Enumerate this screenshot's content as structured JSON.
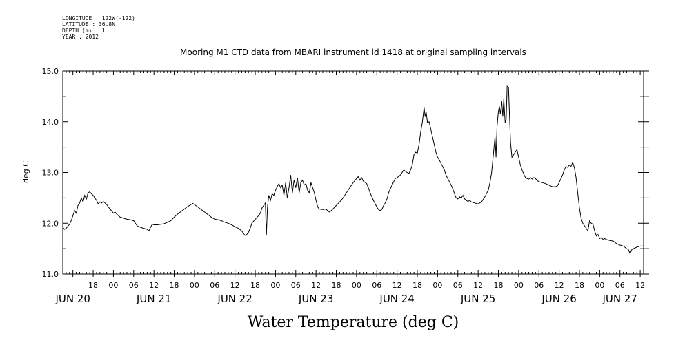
{
  "header": {
    "lines": [
      "LONGITUDE : 122W(-122)",
      "LATITUDE : 36.8N",
      "DEPTH (m) : 1",
      "YEAR : 2012"
    ]
  },
  "chart_data": {
    "type": "line",
    "title": "Mooring M1 CTD data from MBARI instrument id 1418 at original sampling intervals",
    "xlabel": "Water Temperature (deg C)",
    "ylabel": "deg C",
    "ylim": [
      11.0,
      15.0
    ],
    "yticks": [
      "11.0",
      "12.0",
      "13.0",
      "14.0",
      "15.0"
    ],
    "x_unit": "hours since 20-JUN-2012 00:00",
    "xlim": [
      9,
      181
    ],
    "hour_labels": [
      {
        "h": 18,
        "t": "18"
      },
      {
        "h": 24,
        "t": "00"
      },
      {
        "h": 30,
        "t": "06"
      },
      {
        "h": 36,
        "t": "12"
      },
      {
        "h": 42,
        "t": "18"
      },
      {
        "h": 48,
        "t": "00"
      },
      {
        "h": 54,
        "t": "06"
      },
      {
        "h": 60,
        "t": "12"
      },
      {
        "h": 66,
        "t": "18"
      },
      {
        "h": 72,
        "t": "00"
      },
      {
        "h": 78,
        "t": "06"
      },
      {
        "h": 84,
        "t": "12"
      },
      {
        "h": 90,
        "t": "18"
      },
      {
        "h": 96,
        "t": "00"
      },
      {
        "h": 102,
        "t": "06"
      },
      {
        "h": 108,
        "t": "12"
      },
      {
        "h": 114,
        "t": "18"
      },
      {
        "h": 120,
        "t": "00"
      },
      {
        "h": 126,
        "t": "06"
      },
      {
        "h": 132,
        "t": "12"
      },
      {
        "h": 138,
        "t": "18"
      },
      {
        "h": 144,
        "t": "00"
      },
      {
        "h": 150,
        "t": "06"
      },
      {
        "h": 156,
        "t": "12"
      },
      {
        "h": 162,
        "t": "18"
      },
      {
        "h": 168,
        "t": "00"
      },
      {
        "h": 174,
        "t": "06"
      },
      {
        "h": 180,
        "t": "12"
      }
    ],
    "date_labels": [
      {
        "h": 12,
        "t": "JUN 20"
      },
      {
        "h": 36,
        "t": "JUN 21"
      },
      {
        "h": 60,
        "t": "JUN 22"
      },
      {
        "h": 84,
        "t": "JUN 23"
      },
      {
        "h": 108,
        "t": "JUN 24"
      },
      {
        "h": 132,
        "t": "JUN 25"
      },
      {
        "h": 156,
        "t": "JUN 26"
      },
      {
        "h": 174,
        "t": "JUN 27"
      }
    ],
    "series": [
      {
        "points": [
          [
            9,
            11.92
          ],
          [
            9.5,
            11.88
          ],
          [
            10,
            11.9
          ],
          [
            11,
            11.98
          ],
          [
            11.5,
            12.05
          ],
          [
            12,
            12.15
          ],
          [
            12.5,
            12.25
          ],
          [
            13,
            12.2
          ],
          [
            13.5,
            12.35
          ],
          [
            14,
            12.4
          ],
          [
            14.5,
            12.5
          ],
          [
            15,
            12.42
          ],
          [
            15.5,
            12.55
          ],
          [
            16,
            12.48
          ],
          [
            16.5,
            12.6
          ],
          [
            17,
            12.62
          ],
          [
            17.5,
            12.58
          ],
          [
            18,
            12.55
          ],
          [
            18.5,
            12.5
          ],
          [
            19,
            12.45
          ],
          [
            19.5,
            12.38
          ],
          [
            20,
            12.42
          ],
          [
            20.5,
            12.4
          ],
          [
            21,
            12.43
          ],
          [
            21.5,
            12.4
          ],
          [
            22,
            12.37
          ],
          [
            22.5,
            12.32
          ],
          [
            23,
            12.28
          ],
          [
            23.5,
            12.24
          ],
          [
            24,
            12.2
          ],
          [
            24.5,
            12.22
          ],
          [
            25,
            12.18
          ],
          [
            26,
            12.12
          ],
          [
            27,
            12.1
          ],
          [
            28,
            12.08
          ],
          [
            29,
            12.07
          ],
          [
            30,
            12.05
          ],
          [
            30.5,
            12.0
          ],
          [
            31,
            11.95
          ],
          [
            32,
            11.92
          ],
          [
            33,
            11.9
          ],
          [
            34,
            11.88
          ],
          [
            34.5,
            11.85
          ],
          [
            35,
            11.92
          ],
          [
            35.5,
            11.98
          ],
          [
            36,
            11.97
          ],
          [
            37,
            11.97
          ],
          [
            38,
            11.98
          ],
          [
            39,
            11.99
          ],
          [
            40,
            12.02
          ],
          [
            41,
            12.05
          ],
          [
            42,
            12.12
          ],
          [
            43,
            12.18
          ],
          [
            44,
            12.23
          ],
          [
            45,
            12.28
          ],
          [
            46,
            12.33
          ],
          [
            47,
            12.37
          ],
          [
            47.5,
            12.39
          ],
          [
            48,
            12.37
          ],
          [
            49,
            12.32
          ],
          [
            50,
            12.27
          ],
          [
            51,
            12.22
          ],
          [
            52,
            12.17
          ],
          [
            53,
            12.12
          ],
          [
            54,
            12.08
          ],
          [
            55,
            12.07
          ],
          [
            56,
            12.05
          ],
          [
            57,
            12.02
          ],
          [
            58,
            12.0
          ],
          [
            59,
            11.97
          ],
          [
            60,
            11.93
          ],
          [
            61,
            11.9
          ],
          [
            62,
            11.85
          ],
          [
            62.5,
            11.8
          ],
          [
            63,
            11.76
          ],
          [
            63.5,
            11.78
          ],
          [
            64,
            11.82
          ],
          [
            64.5,
            11.9
          ],
          [
            65,
            12.0
          ],
          [
            66,
            12.08
          ],
          [
            67,
            12.15
          ],
          [
            67.5,
            12.2
          ],
          [
            68,
            12.3
          ],
          [
            68.5,
            12.35
          ],
          [
            69,
            12.4
          ],
          [
            69.3,
            11.77
          ],
          [
            69.6,
            12.3
          ],
          [
            70,
            12.55
          ],
          [
            70.5,
            12.45
          ],
          [
            71,
            12.58
          ],
          [
            71.5,
            12.55
          ],
          [
            72,
            12.65
          ],
          [
            72.5,
            12.72
          ],
          [
            73,
            12.78
          ],
          [
            73.5,
            12.7
          ],
          [
            74,
            12.75
          ],
          [
            74.5,
            12.55
          ],
          [
            75,
            12.8
          ],
          [
            75.5,
            12.5
          ],
          [
            76,
            12.7
          ],
          [
            76.5,
            12.95
          ],
          [
            77,
            12.6
          ],
          [
            77.5,
            12.85
          ],
          [
            78,
            12.7
          ],
          [
            78.5,
            12.9
          ],
          [
            79,
            12.6
          ],
          [
            79.5,
            12.8
          ],
          [
            80,
            12.85
          ],
          [
            80.5,
            12.75
          ],
          [
            81,
            12.78
          ],
          [
            81.5,
            12.65
          ],
          [
            82,
            12.6
          ],
          [
            82.5,
            12.8
          ],
          [
            83,
            12.7
          ],
          [
            83.5,
            12.6
          ],
          [
            84,
            12.45
          ],
          [
            84.5,
            12.32
          ],
          [
            85,
            12.28
          ],
          [
            86,
            12.27
          ],
          [
            87,
            12.28
          ],
          [
            87.5,
            12.24
          ],
          [
            88,
            12.22
          ],
          [
            89,
            12.28
          ],
          [
            90,
            12.35
          ],
          [
            91,
            12.42
          ],
          [
            92,
            12.5
          ],
          [
            93,
            12.6
          ],
          [
            94,
            12.7
          ],
          [
            95,
            12.8
          ],
          [
            96,
            12.88
          ],
          [
            96.5,
            12.92
          ],
          [
            97,
            12.85
          ],
          [
            97.5,
            12.9
          ],
          [
            98,
            12.83
          ],
          [
            99,
            12.78
          ],
          [
            99.5,
            12.7
          ],
          [
            100,
            12.6
          ],
          [
            101,
            12.45
          ],
          [
            102,
            12.32
          ],
          [
            102.5,
            12.27
          ],
          [
            103,
            12.25
          ],
          [
            103.5,
            12.27
          ],
          [
            104,
            12.35
          ],
          [
            104.5,
            12.4
          ],
          [
            105,
            12.48
          ],
          [
            105.5,
            12.6
          ],
          [
            106,
            12.68
          ],
          [
            106.5,
            12.75
          ],
          [
            107,
            12.82
          ],
          [
            107.5,
            12.88
          ],
          [
            108,
            12.9
          ],
          [
            109,
            12.95
          ],
          [
            110,
            13.05
          ],
          [
            110.5,
            13.02
          ],
          [
            111,
            13.0
          ],
          [
            111.5,
            12.98
          ],
          [
            112,
            13.05
          ],
          [
            112.5,
            13.15
          ],
          [
            113,
            13.35
          ],
          [
            113.5,
            13.4
          ],
          [
            114,
            13.38
          ],
          [
            114.5,
            13.55
          ],
          [
            115,
            13.8
          ],
          [
            115.5,
            14.0
          ],
          [
            116,
            14.28
          ],
          [
            116.3,
            14.1
          ],
          [
            116.6,
            14.2
          ],
          [
            117,
            13.98
          ],
          [
            117.5,
            14.0
          ],
          [
            118,
            13.85
          ],
          [
            118.5,
            13.7
          ],
          [
            119,
            13.55
          ],
          [
            119.5,
            13.4
          ],
          [
            120,
            13.3
          ],
          [
            120.5,
            13.25
          ],
          [
            121,
            13.18
          ],
          [
            121.5,
            13.12
          ],
          [
            122,
            13.05
          ],
          [
            122.5,
            12.95
          ],
          [
            123,
            12.88
          ],
          [
            123.5,
            12.82
          ],
          [
            124,
            12.75
          ],
          [
            124.5,
            12.68
          ],
          [
            125,
            12.58
          ],
          [
            125.5,
            12.5
          ],
          [
            126,
            12.48
          ],
          [
            126.5,
            12.52
          ],
          [
            127,
            12.5
          ],
          [
            127.5,
            12.55
          ],
          [
            128,
            12.48
          ],
          [
            128.5,
            12.45
          ],
          [
            129,
            12.43
          ],
          [
            129.5,
            12.45
          ],
          [
            130,
            12.42
          ],
          [
            131,
            12.4
          ],
          [
            132,
            12.38
          ],
          [
            133,
            12.42
          ],
          [
            134,
            12.52
          ],
          [
            135,
            12.65
          ],
          [
            135.5,
            12.8
          ],
          [
            136,
            13.0
          ],
          [
            136.5,
            13.35
          ],
          [
            137,
            13.7
          ],
          [
            137.3,
            13.3
          ],
          [
            137.6,
            13.9
          ],
          [
            138,
            14.2
          ],
          [
            138.3,
            14.3
          ],
          [
            138.6,
            14.15
          ],
          [
            139,
            14.4
          ],
          [
            139.3,
            14.1
          ],
          [
            139.6,
            14.45
          ],
          [
            140,
            13.98
          ],
          [
            140.3,
            14.05
          ],
          [
            140.6,
            14.7
          ],
          [
            141,
            14.67
          ],
          [
            141.3,
            14.1
          ],
          [
            141.6,
            13.6
          ],
          [
            142,
            13.3
          ],
          [
            142.5,
            13.35
          ],
          [
            143,
            13.4
          ],
          [
            143.5,
            13.45
          ],
          [
            144,
            13.3
          ],
          [
            144.5,
            13.15
          ],
          [
            145,
            13.05
          ],
          [
            145.5,
            12.97
          ],
          [
            146,
            12.9
          ],
          [
            146.5,
            12.88
          ],
          [
            147,
            12.87
          ],
          [
            147.5,
            12.9
          ],
          [
            148,
            12.87
          ],
          [
            148.5,
            12.9
          ],
          [
            149,
            12.88
          ],
          [
            149.5,
            12.84
          ],
          [
            150,
            12.82
          ],
          [
            151,
            12.8
          ],
          [
            152,
            12.78
          ],
          [
            153,
            12.75
          ],
          [
            154,
            12.72
          ],
          [
            155,
            12.72
          ],
          [
            155.5,
            12.74
          ],
          [
            156,
            12.8
          ],
          [
            157,
            12.95
          ],
          [
            157.5,
            13.05
          ],
          [
            158,
            13.12
          ],
          [
            158.5,
            13.1
          ],
          [
            159,
            13.15
          ],
          [
            159.5,
            13.12
          ],
          [
            160,
            13.2
          ],
          [
            160.5,
            13.1
          ],
          [
            161,
            12.9
          ],
          [
            161.5,
            12.6
          ],
          [
            162,
            12.3
          ],
          [
            162.5,
            12.1
          ],
          [
            163,
            12.0
          ],
          [
            163.5,
            11.95
          ],
          [
            164,
            11.9
          ],
          [
            164.5,
            11.85
          ],
          [
            165,
            12.05
          ],
          [
            165.5,
            12.0
          ],
          [
            166,
            11.98
          ],
          [
            166.5,
            11.85
          ],
          [
            167,
            11.75
          ],
          [
            167.5,
            11.78
          ],
          [
            168,
            11.7
          ],
          [
            168.5,
            11.72
          ],
          [
            169,
            11.68
          ],
          [
            169.5,
            11.7
          ],
          [
            170,
            11.68
          ],
          [
            171,
            11.66
          ],
          [
            172,
            11.65
          ],
          [
            173,
            11.6
          ],
          [
            174,
            11.57
          ],
          [
            175,
            11.55
          ],
          [
            176,
            11.5
          ],
          [
            176.5,
            11.48
          ],
          [
            177,
            11.4
          ],
          [
            177.5,
            11.48
          ],
          [
            178,
            11.5
          ],
          [
            179,
            11.53
          ],
          [
            180,
            11.55
          ],
          [
            181,
            11.55
          ]
        ]
      }
    ]
  }
}
